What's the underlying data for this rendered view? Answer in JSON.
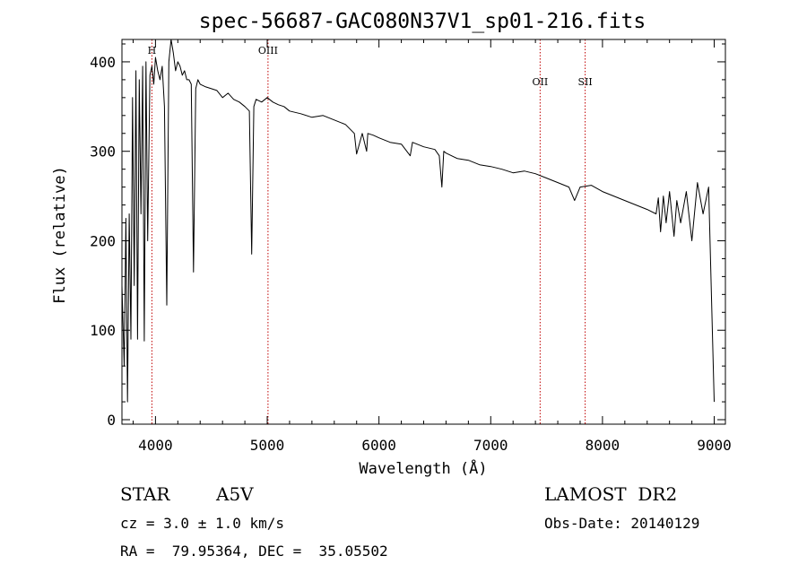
{
  "chart_data": {
    "type": "line",
    "title": "spec-56687-GAC080N37V1_sp01-216.fits",
    "xlabel": "Wavelength (Å)",
    "ylabel": "Flux (relative)",
    "xlim": [
      3700,
      9100
    ],
    "ylim": [
      -5,
      425
    ],
    "xticks": [
      4000,
      5000,
      6000,
      7000,
      8000,
      9000
    ],
    "yticks": [
      0,
      100,
      200,
      300,
      400
    ],
    "grid": false,
    "line_markers": [
      {
        "label": "H",
        "x": 3968
      },
      {
        "label": "OIII",
        "x": 5007
      },
      {
        "label": "OII",
        "x": 7442
      },
      {
        "label": "SII",
        "x": 7845
      }
    ],
    "series": [
      {
        "x": [
          3700,
          3720,
          3735,
          3750,
          3765,
          3780,
          3795,
          3810,
          3825,
          3840,
          3855,
          3870,
          3885,
          3900,
          3915,
          3930,
          3950,
          3968,
          3985,
          4000,
          4020,
          4040,
          4060,
          4080,
          4101,
          4120,
          4140,
          4160,
          4180,
          4200,
          4220,
          4240,
          4260,
          4280,
          4300,
          4320,
          4340,
          4360,
          4380,
          4400,
          4450,
          4500,
          4550,
          4600,
          4650,
          4700,
          4750,
          4800,
          4840,
          4861,
          4880,
          4900,
          4950,
          5000,
          5050,
          5100,
          5150,
          5200,
          5300,
          5400,
          5500,
          5600,
          5700,
          5780,
          5800,
          5850,
          5890,
          5900,
          5950,
          6000,
          6100,
          6200,
          6280,
          6300,
          6400,
          6500,
          6540,
          6563,
          6580,
          6600,
          6700,
          6800,
          6900,
          7000,
          7100,
          7200,
          7300,
          7400,
          7500,
          7600,
          7700,
          7750,
          7800,
          7900,
          8000,
          8100,
          8200,
          8300,
          8400,
          8480,
          8500,
          8520,
          8545,
          8570,
          8600,
          8640,
          8665,
          8700,
          8750,
          8800,
          8850,
          8900,
          8950,
          9000
        ],
        "values": [
          150,
          60,
          225,
          20,
          230,
          90,
          360,
          150,
          390,
          90,
          380,
          230,
          395,
          88,
          400,
          200,
          385,
          395,
          375,
          405,
          390,
          380,
          395,
          350,
          128,
          400,
          430,
          410,
          390,
          400,
          395,
          385,
          390,
          380,
          380,
          375,
          165,
          370,
          380,
          375,
          372,
          370,
          368,
          360,
          365,
          358,
          355,
          350,
          345,
          185,
          350,
          358,
          355,
          360,
          355,
          352,
          350,
          345,
          342,
          338,
          340,
          335,
          330,
          320,
          297,
          320,
          300,
          320,
          318,
          315,
          310,
          308,
          295,
          310,
          305,
          302,
          295,
          260,
          300,
          298,
          292,
          290,
          285,
          283,
          280,
          276,
          278,
          275,
          270,
          265,
          260,
          245,
          260,
          262,
          255,
          250,
          245,
          240,
          235,
          230,
          248,
          210,
          250,
          220,
          255,
          205,
          245,
          220,
          255,
          200,
          265,
          230,
          260,
          20
        ]
      }
    ]
  },
  "annotations": {
    "object_class": "STAR",
    "subclass": "A5V",
    "survey": "LAMOST  DR2",
    "cz": "cz = 3.0 ± 1.0 km/s",
    "obs_date": "Obs-Date: 20140129",
    "coords": "RA =  79.95364, DEC =  35.05502"
  }
}
